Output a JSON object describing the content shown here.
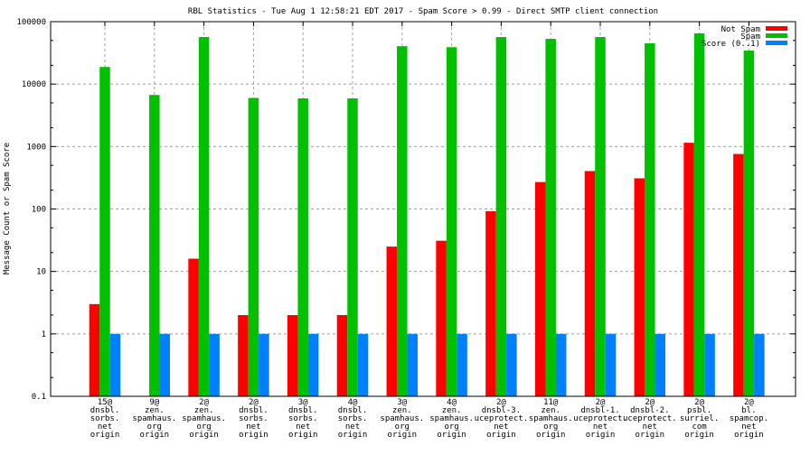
{
  "chart_data": {
    "type": "bar",
    "title": "RBL Statistics - Tue Aug  1 12:58:21 EDT 2017 - Spam Score > 0.99 - Direct SMTP client connection",
    "xlabel": "",
    "ylabel": "Message Count or Spam Score",
    "yscale": "log",
    "ylim": [
      0.1,
      100000
    ],
    "yticks": [
      "0.1",
      "1",
      "10",
      "100",
      "1000",
      "10000",
      "100000"
    ],
    "grid": true,
    "legend_position": "top-right",
    "categories": [
      [
        "15@",
        "dnsbl.",
        "sorbs.",
        "net",
        "origin"
      ],
      [
        "9@",
        "zen.",
        "spamhaus.",
        "org",
        "origin"
      ],
      [
        "2@",
        "zen.",
        "spamhaus.",
        "org",
        "origin"
      ],
      [
        "2@",
        "dnsbl.",
        "sorbs.",
        "net",
        "origin"
      ],
      [
        "3@",
        "dnsbl.",
        "sorbs.",
        "net",
        "origin"
      ],
      [
        "4@",
        "dnsbl.",
        "sorbs.",
        "net",
        "origin"
      ],
      [
        "3@",
        "zen.",
        "spamhaus.",
        "org",
        "origin"
      ],
      [
        "4@",
        "zen.",
        "spamhaus.",
        "org",
        "origin"
      ],
      [
        "2@",
        "dnsbl-3.",
        "uceprotect.",
        "net",
        "origin"
      ],
      [
        "11@",
        "zen.",
        "spamhaus.",
        "org",
        "origin"
      ],
      [
        "2@",
        "dnsbl-1.",
        "uceprotect.",
        "net",
        "origin"
      ],
      [
        "2@",
        "dnsbl-2.",
        "uceprotect.",
        "net",
        "origin"
      ],
      [
        "2@",
        "psbl.",
        "surriel.",
        "com",
        "origin"
      ],
      [
        "2@",
        "bl.",
        "spamcop.",
        "net",
        "origin"
      ]
    ],
    "series": [
      {
        "name": "Not Spam",
        "color": "#ff0000",
        "values": [
          3,
          null,
          16,
          2,
          2,
          2,
          25,
          31,
          92,
          270,
          405,
          310,
          1150,
          760
        ]
      },
      {
        "name": "Spam",
        "color": "#00c000",
        "values": [
          18800,
          6700,
          56700,
          6000,
          5900,
          5900,
          40500,
          39000,
          56700,
          53000,
          56700,
          45000,
          65000,
          34400
        ]
      },
      {
        "name": "Score (0..1)",
        "color": "#0080ff",
        "values": [
          1,
          1,
          1,
          1,
          1,
          1,
          1,
          1,
          1,
          1,
          1,
          1,
          1,
          1
        ]
      }
    ]
  }
}
